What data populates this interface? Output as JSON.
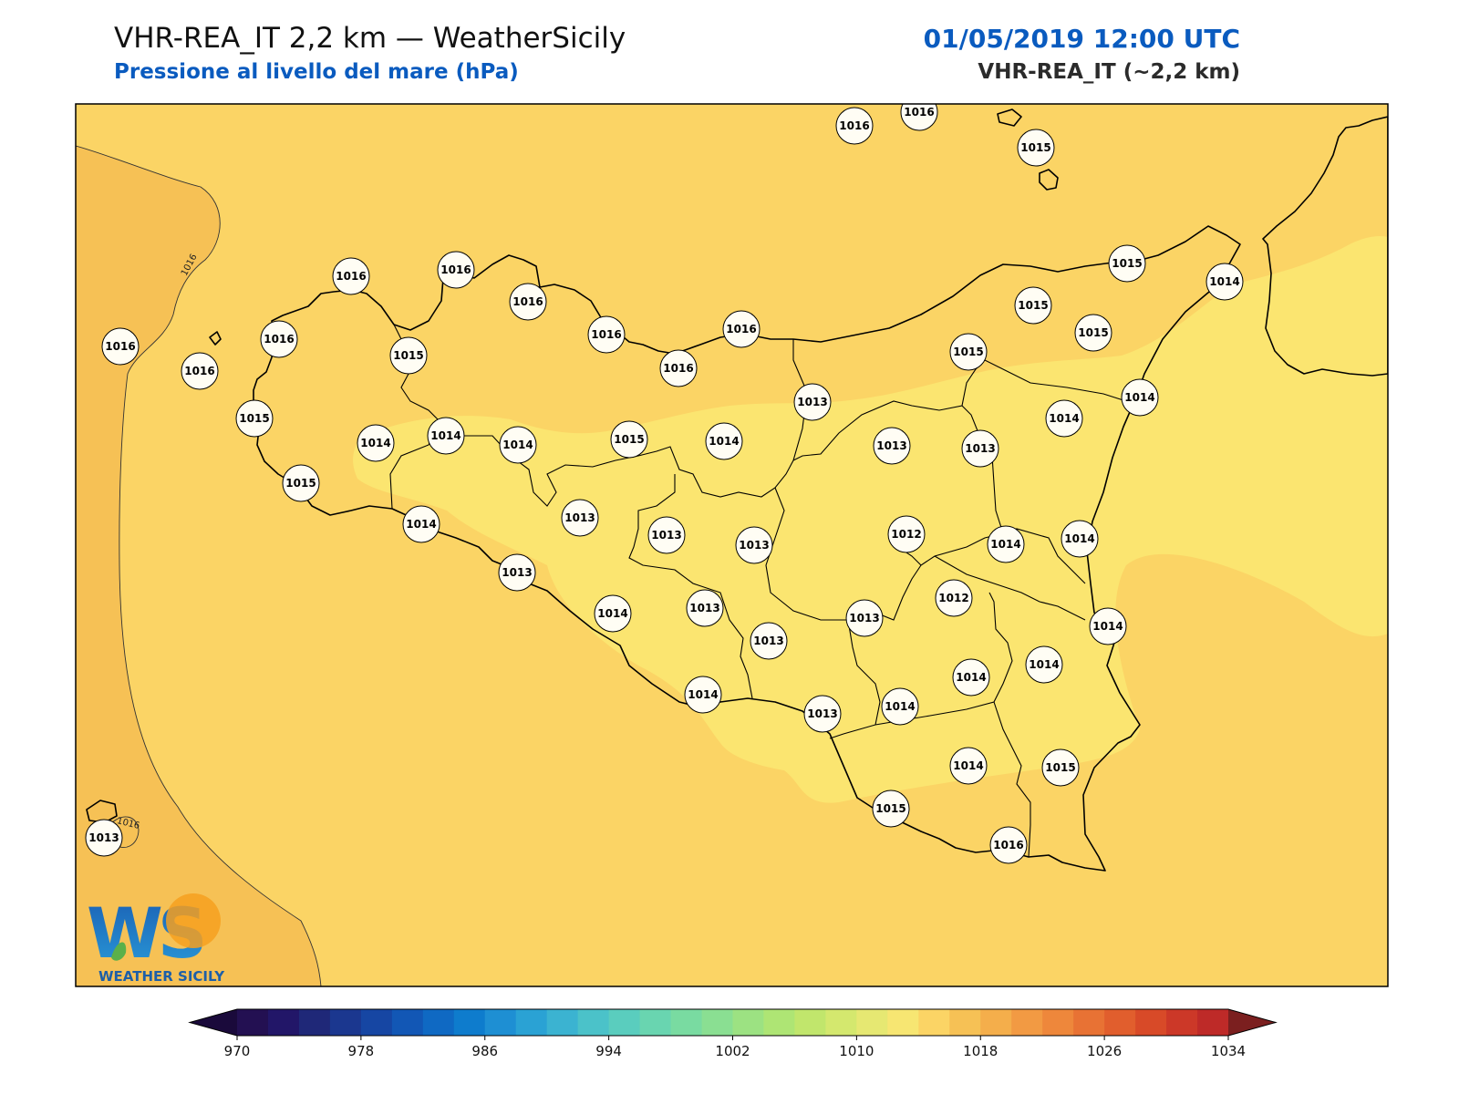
{
  "header": {
    "title": "VHR-REA_IT 2,2 km — WeatherSicily",
    "subtitle": "Pressione al livello del mare (hPa)",
    "datetime": "01/05/2019 12:00 UTC",
    "model": "VHR-REA_IT (~2,2 km)"
  },
  "colors": {
    "accent": "#0a5bbf",
    "background_field": "#fbd465",
    "low_field": "#fbe570",
    "high_field": "#f6c155",
    "coastline": "#000000",
    "contour": "#333333"
  },
  "contours": [
    {
      "label": "1016"
    },
    {
      "label": "1016"
    }
  ],
  "stations": [
    {
      "value": "1016"
    },
    {
      "value": "1016"
    },
    {
      "value": "1015"
    },
    {
      "value": "1015"
    },
    {
      "value": "1014"
    },
    {
      "value": "1016"
    },
    {
      "value": "1016"
    },
    {
      "value": "1016"
    },
    {
      "value": "1016"
    },
    {
      "value": "1016"
    },
    {
      "value": "1016"
    },
    {
      "value": "1016"
    },
    {
      "value": "1016"
    },
    {
      "value": "1015"
    },
    {
      "value": "1016"
    },
    {
      "value": "1015"
    },
    {
      "value": "1015"
    },
    {
      "value": "1015"
    },
    {
      "value": "1015"
    },
    {
      "value": "1014"
    },
    {
      "value": "1014"
    },
    {
      "value": "1014"
    },
    {
      "value": "1015"
    },
    {
      "value": "1014"
    },
    {
      "value": "1013"
    },
    {
      "value": "1013"
    },
    {
      "value": "1014"
    },
    {
      "value": "1015"
    },
    {
      "value": "1014"
    },
    {
      "value": "1013"
    },
    {
      "value": "1013"
    },
    {
      "value": "1013"
    },
    {
      "value": "1012"
    },
    {
      "value": "1013"
    },
    {
      "value": "1014"
    },
    {
      "value": "1014"
    },
    {
      "value": "1014"
    },
    {
      "value": "1013"
    },
    {
      "value": "1013"
    },
    {
      "value": "1013"
    },
    {
      "value": "1012"
    },
    {
      "value": "1014"
    },
    {
      "value": "1014"
    },
    {
      "value": "1014"
    },
    {
      "value": "1013"
    },
    {
      "value": "1013"
    },
    {
      "value": "1014"
    },
    {
      "value": "1014"
    },
    {
      "value": "1014"
    },
    {
      "value": "1014"
    },
    {
      "value": "1015"
    },
    {
      "value": "1015"
    },
    {
      "value": "1016"
    },
    {
      "value": "1013"
    }
  ],
  "logo": {
    "letters": "WS",
    "name": "WEATHER SICILY"
  },
  "colorbar": {
    "colors": [
      "#231052",
      "#221668",
      "#1f2878",
      "#1b378f",
      "#1646a3",
      "#1257b5",
      "#0f69c3",
      "#0e7ccd",
      "#1e8fd3",
      "#2aa2d4",
      "#3bb3d1",
      "#4bc2c9",
      "#5acdbe",
      "#69d5b0",
      "#79dba1",
      "#8adf92",
      "#9ce282",
      "#aee574",
      "#c1e66c",
      "#d4e86e",
      "#e6e872",
      "#f7e672",
      "#fbd465",
      "#f6c155",
      "#f4ae4b",
      "#f29a43",
      "#ee873b",
      "#e87234",
      "#e15e2d",
      "#d84a28",
      "#cc3828",
      "#be2a28"
    ],
    "under_color": "#1a0a3b",
    "over_color": "#7b1f1f",
    "ticks": [
      "970",
      "978",
      "986",
      "994",
      "1002",
      "1010",
      "1018",
      "1026",
      "1034"
    ]
  }
}
